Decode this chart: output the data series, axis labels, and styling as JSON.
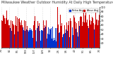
{
  "background_color": "#ffffff",
  "plot_bg_color": "#ffffff",
  "grid_color": "#bbbbbb",
  "ylim": [
    10,
    100
  ],
  "ytick_values": [
    20,
    30,
    40,
    50,
    60,
    70,
    80,
    90,
    100
  ],
  "n_days": 365,
  "seed": 42,
  "bar_width": 1.0,
  "tick_fontsize": 2.5,
  "avg_humidity": 58,
  "legend_blue": "Below Avg",
  "legend_red": "Above Avg",
  "color_above": "#cc0000",
  "color_below": "#0033cc",
  "title_text": "Milwaukee Weather Outdoor Humidity At Daily High Temperature (Past Year)",
  "title_fontsize": 3.5
}
